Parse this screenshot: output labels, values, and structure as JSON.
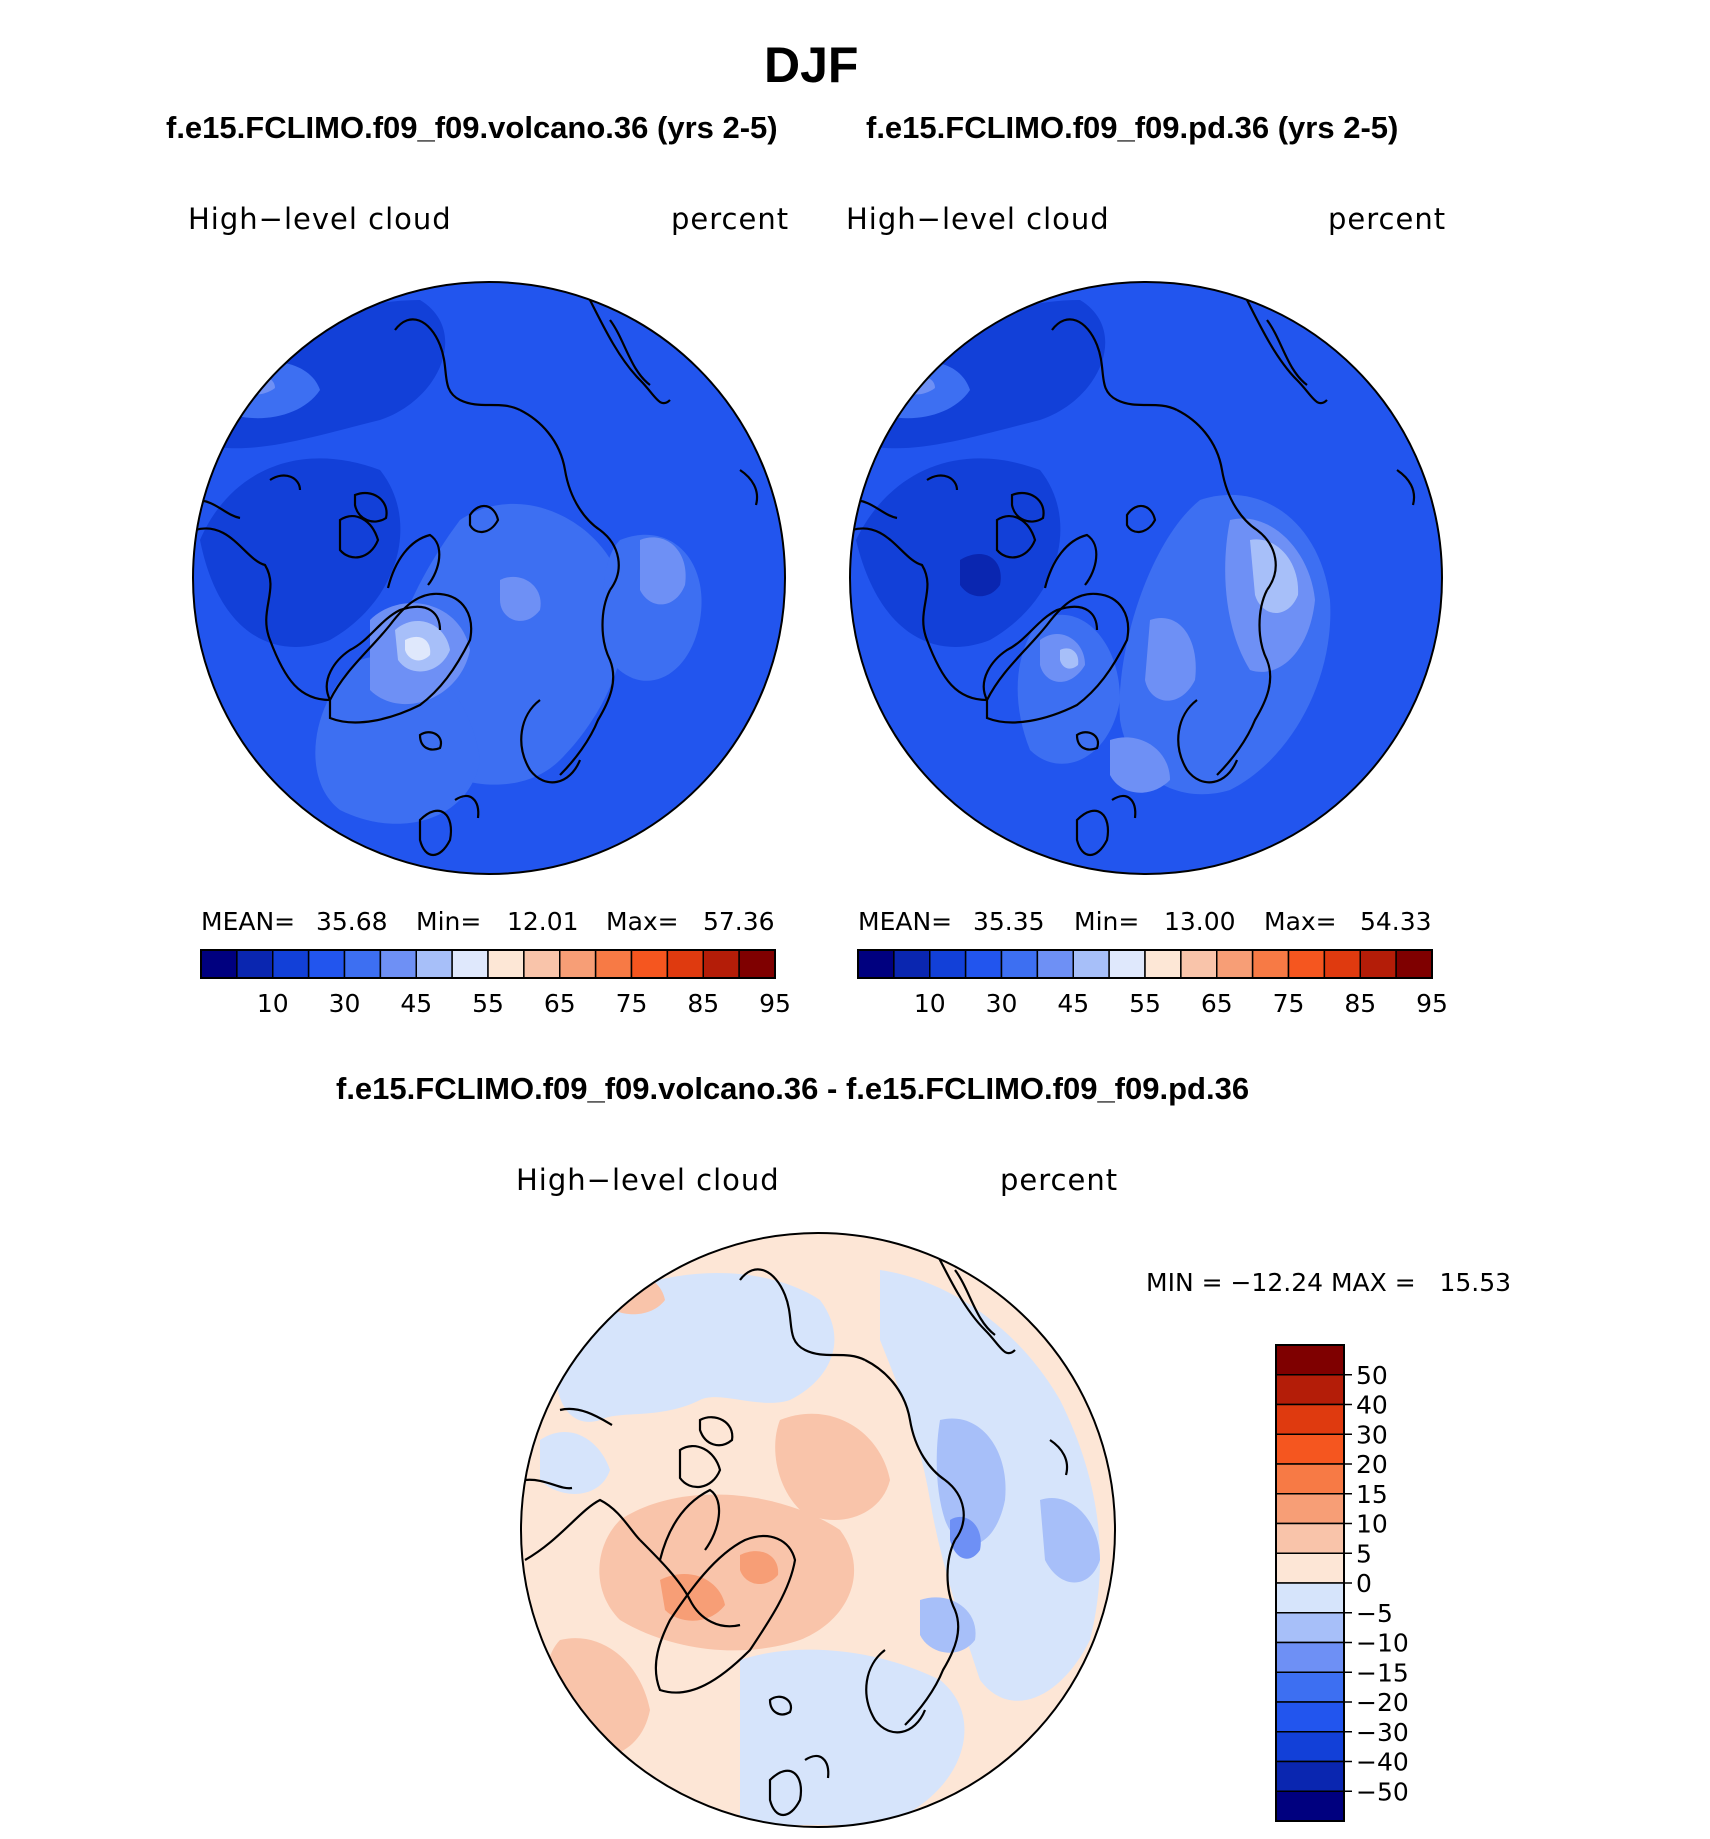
{
  "figure": {
    "title": "DJF",
    "colors": {
      "seq": [
        "#00007f",
        "#0a26b0",
        "#1240d8",
        "#2255ee",
        "#3d6ff2",
        "#6e90f5",
        "#a7bff9",
        "#dfe8fc",
        "#fde7d6",
        "#f9c4aa",
        "#f79e76",
        "#f77a45",
        "#f5561f",
        "#df3a0f",
        "#b41d08",
        "#7f0000"
      ],
      "diff": [
        "#00007f",
        "#0a26b0",
        "#1240d8",
        "#2255ee",
        "#3d6ff2",
        "#6e90f5",
        "#a7bff9",
        "#d6e4fb",
        "#fde6d6",
        "#f9c4aa",
        "#f79e76",
        "#f77a45",
        "#f5561f",
        "#df3a0f",
        "#b41d08",
        "#7f0000"
      ]
    }
  },
  "panels": [
    {
      "case_title": "f.e15.FCLIMO.f09_f09.volcano.36 (yrs 2-5)",
      "variable": "High−level cloud",
      "units": "percent",
      "mean_label": "MEAN=",
      "mean": "35.68",
      "min_label": "Min=",
      "min": "12.01",
      "max_label": "Max=",
      "max": "57.36",
      "colorbar_ticks": [
        "10",
        "30",
        "45",
        "55",
        "65",
        "75",
        "85",
        "95"
      ]
    },
    {
      "case_title": "f.e15.FCLIMO.f09_f09.pd.36 (yrs 2-5)",
      "variable": "High−level cloud",
      "units": "percent",
      "mean_label": "MEAN=",
      "mean": "35.35",
      "min_label": "Min=",
      "min": "13.00",
      "max_label": "Max=",
      "max": "54.33",
      "colorbar_ticks": [
        "10",
        "30",
        "45",
        "55",
        "65",
        "75",
        "85",
        "95"
      ]
    }
  ],
  "difference": {
    "case_title": "f.e15.FCLIMO.f09_f09.volcano.36 - f.e15.FCLIMO.f09_f09.pd.36",
    "variable": "High−level cloud",
    "units": "percent",
    "minmax_text": "MIN = −12.24 MAX =   15.53",
    "colorbar_ticks": [
      "50",
      "40",
      "30",
      "20",
      "15",
      "10",
      "5",
      "0",
      "−5",
      "−10",
      "−15",
      "−20",
      "−30",
      "−40",
      "−50"
    ]
  },
  "chart_data": [
    {
      "type": "heatmap",
      "projection": "north polar stereographic",
      "title": "f.e15.FCLIMO.f09_f09.volcano.36 (yrs 2-5)",
      "field": "High-level cloud",
      "units": "percent",
      "mean": 35.68,
      "min": 12.01,
      "max": 57.36,
      "levels": [
        5,
        10,
        20,
        30,
        40,
        45,
        50,
        55,
        60,
        65,
        70,
        75,
        80,
        85,
        90,
        95
      ]
    },
    {
      "type": "heatmap",
      "projection": "north polar stereographic",
      "title": "f.e15.FCLIMO.f09_f09.pd.36 (yrs 2-5)",
      "field": "High-level cloud",
      "units": "percent",
      "mean": 35.35,
      "min": 13.0,
      "max": 54.33,
      "levels": [
        5,
        10,
        20,
        30,
        40,
        45,
        50,
        55,
        60,
        65,
        70,
        75,
        80,
        85,
        90,
        95
      ]
    },
    {
      "type": "heatmap",
      "projection": "north polar stereographic",
      "title": "f.e15.FCLIMO.f09_f09.volcano.36 - f.e15.FCLIMO.f09_f09.pd.36",
      "field": "High-level cloud",
      "units": "percent",
      "min": -12.24,
      "max": 15.53,
      "levels": [
        -50,
        -40,
        -30,
        -20,
        -15,
        -10,
        -5,
        0,
        5,
        10,
        15,
        20,
        30,
        40,
        50
      ]
    }
  ]
}
